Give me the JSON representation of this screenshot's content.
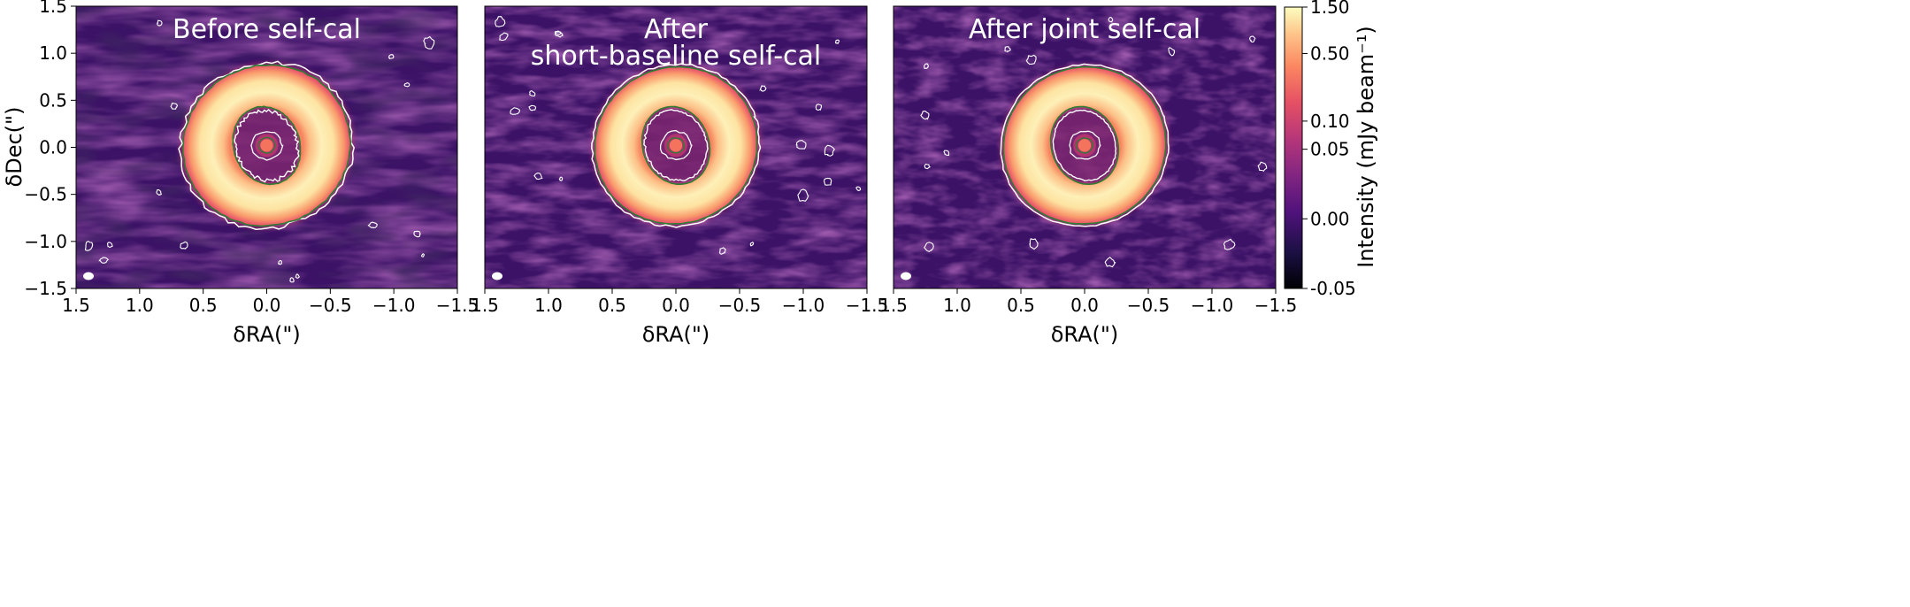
{
  "chart_data": [
    {
      "type": "heatmap",
      "title": "Before self-cal",
      "title_lines": [
        "Before self-cal"
      ],
      "xlabel": "δRA(\")",
      "ylabel": "δDec(\")",
      "xlim": [
        1.5,
        -1.5
      ],
      "ylim": [
        -1.5,
        1.5
      ],
      "xticks": [
        1.5,
        1.0,
        0.5,
        0.0,
        -0.5,
        -1.0,
        -1.5
      ],
      "xtick_labels": [
        "1.5",
        "1.0",
        "0.5",
        "0.0",
        "−0.5",
        "−1.0",
        "−1.5"
      ],
      "yticks": [
        1.5,
        1.0,
        0.5,
        0.0,
        -0.5,
        -1.0,
        -1.5
      ],
      "ytick_labels": [
        "1.5",
        "1.0",
        "0.5",
        "0.0",
        "−0.5",
        "−1.0",
        "−1.5"
      ],
      "ring": {
        "center": [
          0.0,
          0.02
        ],
        "pa_deg": 20,
        "outer_axes": [
          0.66,
          0.85
        ],
        "inner_axes": [
          0.26,
          0.42
        ],
        "central_source_radius": 0.05
      },
      "noise_level": "high"
    },
    {
      "type": "heatmap",
      "title": "After short-baseline self-cal",
      "title_lines": [
        "After",
        "short-baseline self-cal"
      ],
      "xlabel": "δRA(\")",
      "xlim": [
        1.5,
        -1.5
      ],
      "ylim": [
        -1.5,
        1.5
      ],
      "xticks": [
        1.5,
        1.0,
        0.5,
        0.0,
        -0.5,
        -1.0,
        -1.5
      ],
      "xtick_labels": [
        "1.5",
        "1.0",
        "0.5",
        "0.0",
        "−0.5",
        "−1.0",
        "−1.5"
      ],
      "ring": {
        "center": [
          0.0,
          0.02
        ],
        "pa_deg": 20,
        "outer_axes": [
          0.64,
          0.83
        ],
        "inner_axes": [
          0.26,
          0.42
        ],
        "central_source_radius": 0.05
      },
      "noise_level": "medium"
    },
    {
      "type": "heatmap",
      "title": "After joint self-cal",
      "title_lines": [
        "After joint self-cal"
      ],
      "xlabel": "δRA(\")",
      "xlim": [
        1.5,
        -1.5
      ],
      "ylim": [
        -1.5,
        1.5
      ],
      "xticks": [
        1.5,
        1.0,
        0.5,
        0.0,
        -0.5,
        -1.0,
        -1.5
      ],
      "xtick_labels": [
        "1.5",
        "1.0",
        "0.5",
        "0.0",
        "−0.5",
        "−1.0",
        "−1.5"
      ],
      "ring": {
        "center": [
          0.0,
          0.02
        ],
        "pa_deg": 20,
        "outer_axes": [
          0.64,
          0.83
        ],
        "inner_axes": [
          0.26,
          0.42
        ],
        "central_source_radius": 0.05
      },
      "noise_level": "low"
    }
  ],
  "colorbar": {
    "label": "Intensity (mJy beam⁻¹)",
    "colormap": "magma",
    "ticks": [
      {
        "value": 1.5,
        "label": "1.50"
      },
      {
        "value": 0.5,
        "label": "0.50"
      },
      {
        "value": 0.1,
        "label": "0.10"
      },
      {
        "value": 0.05,
        "label": "0.05"
      },
      {
        "value": 0.0,
        "label": "0.00"
      },
      {
        "value": -0.05,
        "label": "-0.05"
      }
    ],
    "range": [
      -0.05,
      1.5
    ]
  },
  "colors": {
    "contour_white": "#ffffff",
    "contour_green": "#2e7d32",
    "bg_dark": "#3b1266",
    "axis": "#000000"
  }
}
